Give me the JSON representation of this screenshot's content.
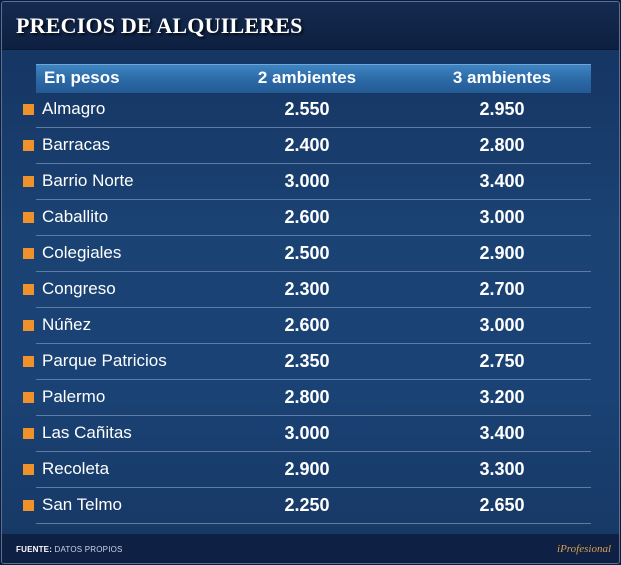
{
  "title": "PRECIOS DE ALQUILERES",
  "colors": {
    "background": "#1a4273",
    "header_row": "#2c6aa8",
    "bullet": "#f0922b",
    "title_bar": "#0e2041"
  },
  "chart_data": {
    "type": "table",
    "title": "PRECIOS DE ALQUILERES",
    "columns": [
      "En pesos",
      "2 ambientes",
      "3 ambientes"
    ],
    "rows": [
      {
        "barrio": "Almagro",
        "v2": "2.550",
        "v3": "2.950"
      },
      {
        "barrio": "Barracas",
        "v2": "2.400",
        "v3": "2.800"
      },
      {
        "barrio": "Barrio Norte",
        "v2": "3.000",
        "v3": "3.400"
      },
      {
        "barrio": "Caballito",
        "v2": "2.600",
        "v3": "3.000"
      },
      {
        "barrio": "Colegiales",
        "v2": "2.500",
        "v3": "2.900"
      },
      {
        "barrio": "Congreso",
        "v2": "2.300",
        "v3": "2.700"
      },
      {
        "barrio": "Núñez",
        "v2": "2.600",
        "v3": "3.000"
      },
      {
        "barrio": "Parque Patricios",
        "v2": "2.350",
        "v3": "2.750"
      },
      {
        "barrio": "Palermo",
        "v2": "2.800",
        "v3": "3.200"
      },
      {
        "barrio": "Las Cañitas",
        "v2": "3.000",
        "v3": "3.400"
      },
      {
        "barrio": "Recoleta",
        "v2": "2.900",
        "v3": "3.300"
      },
      {
        "barrio": "San Telmo",
        "v2": "2.250",
        "v3": "2.650"
      }
    ]
  },
  "footer": {
    "source_label": "FUENTE:",
    "source_text": " DATOS PROPIOS",
    "brand": "iProfesional"
  }
}
